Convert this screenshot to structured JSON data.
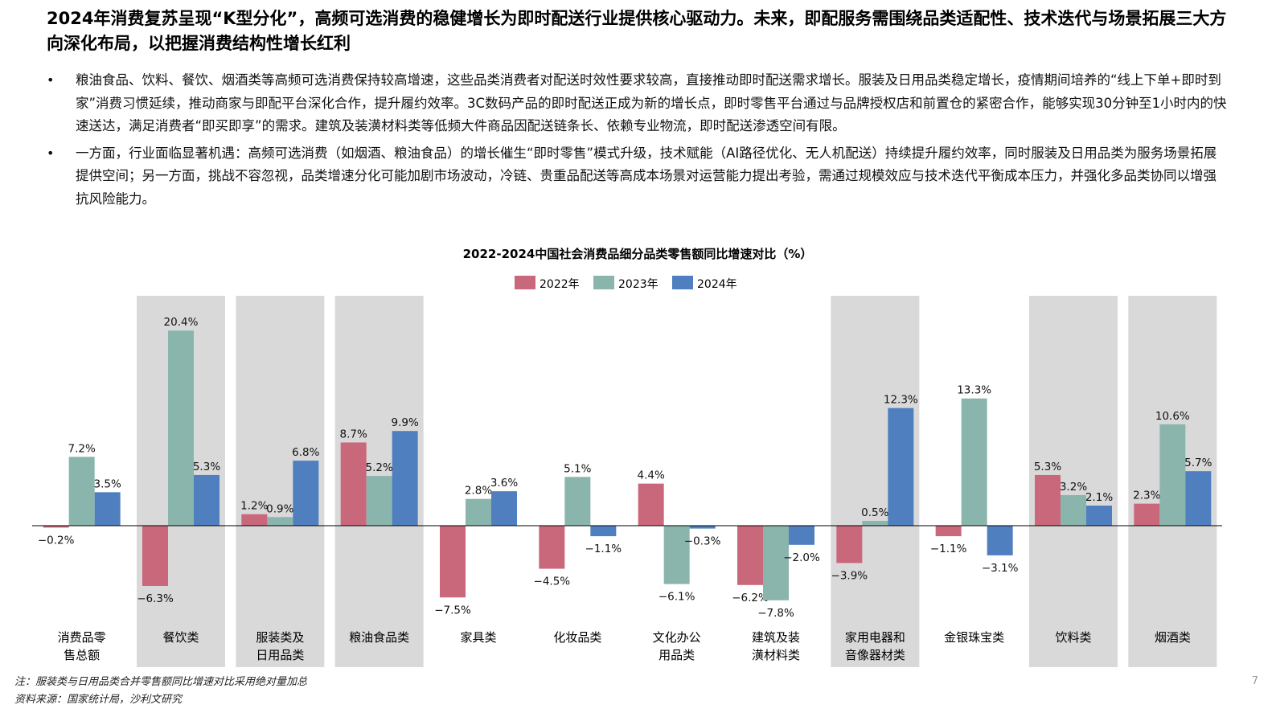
{
  "headline": "2024年消费复苏呈现“K型分化”，高频可选消费的稳健增长为即时配送行业提供核心驱动力。未来，即配服务需围绕品类适配性、技术迭代与场景拓展三大方向深化布局，以把握消费结构性增长红利",
  "bullets": [
    "粮油食品、饮料、餐饮、烟酒类等高频可选消费保持较高增速，这些品类消费者对配送时效性要求较高，直接推动即时配送需求增长。服装及日用品类稳定增长，疫情期间培养的“线上下单+即时到家”消费习惯延续，推动商家与即配平台深化合作，提升履约效率。3C数码产品的即时配送正成为新的增长点，即时零售平台通过与品牌授权店和前置仓的紧密合作，能够实现30分钟至1小时内的快速送达，满足消费者“即买即享”的需求。建筑及装潢材料类等低频大件商品因配送链条长、依赖专业物流，即时配送渗透空间有限。",
    "一方面，行业面临显著机遇：高频可选消费（如烟酒、粮油食品）的增长催生“即时零售”模式升级，技术赋能（AI路径优化、无人机配送）持续提升履约效率，同时服装及日用品类为服务场景拓展提供空间；另一方面，挑战不容忽视，品类增速分化可能加剧市场波动，冷链、贵重品配送等高成本场景对运营能力提出考验，需通过规模效应与技术迭代平衡成本压力，并强化多品类协同以增强抗风险能力。"
  ],
  "bullet_symbol": "•",
  "chart_data": {
    "type": "bar",
    "title": "2022-2024中国社会消费品细分品类零售额同比增速对比（%）",
    "categories": [
      "消费品零售总额",
      "餐饮类",
      "服装类及日用品类",
      "粮油食品类",
      "家具类",
      "化妆品类",
      "文化办公用品类",
      "建筑及装潢材料类",
      "家用电器和音像器材类",
      "金银珠宝类",
      "饮料类",
      "烟酒类"
    ],
    "category_lines": [
      [
        "消费品零",
        "售总额"
      ],
      [
        "餐饮类"
      ],
      [
        "服装类及",
        "日用品类"
      ],
      [
        "粮油食品类"
      ],
      [
        "家具类"
      ],
      [
        "化妆品类"
      ],
      [
        "文化办公",
        "用品类"
      ],
      [
        "建筑及装",
        "潢材料类"
      ],
      [
        "家用电器和",
        "音像器材类"
      ],
      [
        "金银珠宝类"
      ],
      [
        "饮料类"
      ],
      [
        "烟酒类"
      ]
    ],
    "highlighted": [
      false,
      true,
      true,
      true,
      false,
      false,
      false,
      false,
      true,
      false,
      true,
      true
    ],
    "series": [
      {
        "name": "2022年",
        "color": "#c9677b",
        "values": [
          -0.2,
          -6.3,
          1.2,
          8.7,
          -7.5,
          -4.5,
          4.4,
          -6.2,
          -3.9,
          -1.1,
          5.3,
          2.3
        ]
      },
      {
        "name": "2023年",
        "color": "#8ab5ad",
        "values": [
          7.2,
          20.4,
          0.9,
          5.2,
          2.8,
          5.1,
          -6.1,
          -7.8,
          0.5,
          13.3,
          3.2,
          10.6
        ]
      },
      {
        "name": "2024年",
        "color": "#4f7fbf",
        "values": [
          3.5,
          5.3,
          6.8,
          9.9,
          3.6,
          -1.1,
          -0.3,
          -2.0,
          12.3,
          -3.1,
          2.1,
          5.7
        ]
      }
    ],
    "value_suffix": "%",
    "legend_position": "top-center",
    "grid": false,
    "ylim": [
      -9,
      24
    ],
    "highlight_color": "#d9d9d9"
  },
  "notes": [
    "注：服装类与日用品类合并零售额同比增速对比采用绝对量加总",
    "资料来源：国家统计局，沙利文研究"
  ],
  "page_number": "7"
}
